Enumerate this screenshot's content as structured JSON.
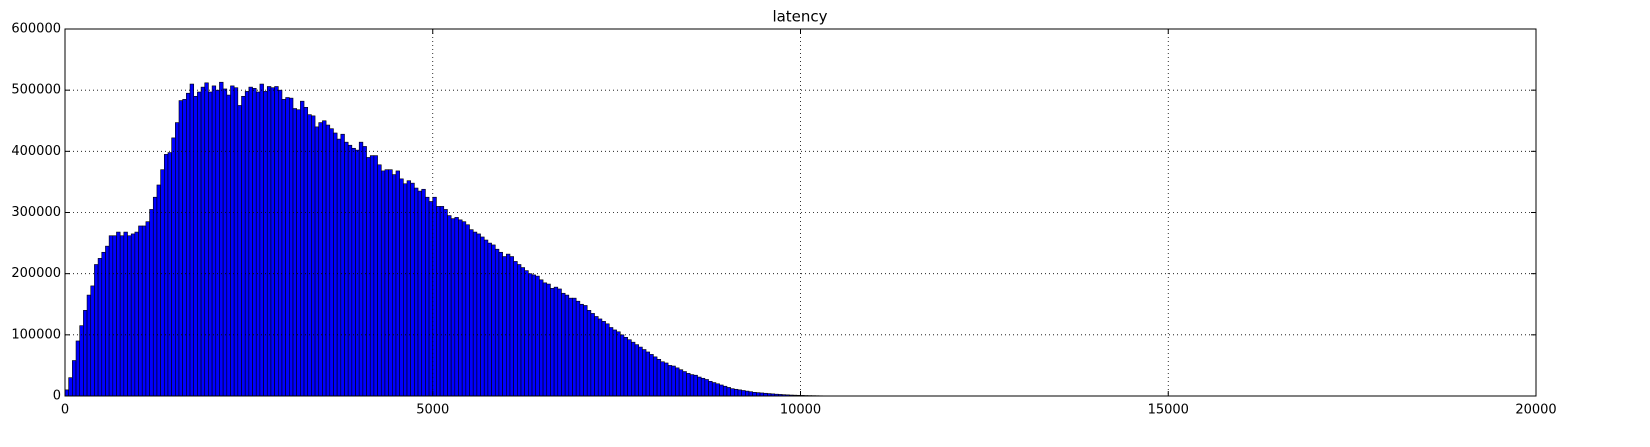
{
  "chart_data": {
    "type": "histogram",
    "title": "latency",
    "bins": [
      0,
      50,
      100,
      150,
      200,
      250,
      300,
      350,
      400,
      450,
      500,
      550,
      600,
      650,
      700,
      750,
      800,
      850,
      900,
      950,
      1000,
      1050,
      1100,
      1150,
      1200,
      1250,
      1300,
      1350,
      1400,
      1450,
      1500,
      1550,
      1600,
      1650,
      1700,
      1750,
      1800,
      1850,
      1900,
      1950,
      2000,
      2050,
      2100,
      2150,
      2200,
      2250,
      2300,
      2350,
      2400,
      2450,
      2500,
      2550,
      2600,
      2650,
      2700,
      2750,
      2800,
      2850,
      2900,
      2950,
      3000,
      3050,
      3100,
      3150,
      3200,
      3250,
      3300,
      3350,
      3400,
      3450,
      3500,
      3550,
      3600,
      3650,
      3700,
      3750,
      3800,
      3850,
      3900,
      3950,
      4000,
      4050,
      4100,
      4150,
      4200,
      4250,
      4300,
      4350,
      4400,
      4450,
      4500,
      4550,
      4600,
      4650,
      4700,
      4750,
      4800,
      4850,
      4900,
      4950,
      5000,
      5050,
      5100,
      5150,
      5200,
      5250,
      5300,
      5350,
      5400,
      5450,
      5500,
      5550,
      5600,
      5650,
      5700,
      5750,
      5800,
      5850,
      5900,
      5950,
      6000,
      6050,
      6100,
      6150,
      6200,
      6250,
      6300,
      6350,
      6400,
      6450,
      6500,
      6550,
      6600,
      6650,
      6700,
      6750,
      6800,
      6850,
      6900,
      6950,
      7000,
      7050,
      7100,
      7150,
      7200,
      7250,
      7300,
      7350,
      7400,
      7450,
      7500,
      7550,
      7600,
      7650,
      7700,
      7750,
      7800,
      7850,
      7900,
      7950,
      8000,
      8050,
      8100,
      8150,
      8200,
      8250,
      8300,
      8350,
      8400,
      8450,
      8500,
      8550,
      8600,
      8650,
      8700,
      8750,
      8800,
      8850,
      8900,
      8950,
      9000,
      9050,
      9100,
      9150,
      9200,
      9250,
      9300,
      9350,
      9400,
      9450,
      9500,
      9550,
      9600,
      9650,
      9700,
      9750,
      9800,
      9850,
      9900,
      9950,
      10000,
      10050,
      10100,
      10150,
      10200,
      10250,
      10300,
      10350,
      10400
    ],
    "values": [
      10000,
      30000,
      58000,
      90000,
      115000,
      140000,
      165000,
      180000,
      215000,
      225000,
      235000,
      245000,
      262000,
      262000,
      268000,
      262000,
      268000,
      262000,
      265000,
      268000,
      278000,
      278000,
      285000,
      305000,
      325000,
      345000,
      370000,
      395000,
      398000,
      422000,
      447000,
      483000,
      485000,
      495000,
      510000,
      490000,
      497000,
      505000,
      512000,
      497000,
      507000,
      500000,
      513000,
      502000,
      492000,
      507000,
      504000,
      475000,
      490000,
      498000,
      505000,
      503000,
      497000,
      510000,
      498000,
      506000,
      504000,
      506000,
      500000,
      485000,
      488000,
      487000,
      470000,
      468000,
      482000,
      472000,
      460000,
      458000,
      440000,
      447000,
      450000,
      443000,
      437000,
      430000,
      420000,
      428000,
      415000,
      410000,
      405000,
      402000,
      415000,
      408000,
      390000,
      393000,
      393000,
      378000,
      368000,
      370000,
      370000,
      362000,
      368000,
      355000,
      347000,
      352000,
      348000,
      340000,
      335000,
      338000,
      325000,
      318000,
      325000,
      310000,
      310000,
      305000,
      295000,
      290000,
      292000,
      288000,
      285000,
      280000,
      272000,
      268000,
      265000,
      260000,
      255000,
      250000,
      247000,
      240000,
      235000,
      228000,
      232000,
      228000,
      220000,
      215000,
      210000,
      205000,
      200000,
      198000,
      196000,
      190000,
      185000,
      183000,
      176000,
      178000,
      175000,
      168000,
      165000,
      160000,
      160000,
      155000,
      150000,
      148000,
      140000,
      135000,
      130000,
      126000,
      122000,
      118000,
      112000,
      108000,
      105000,
      100000,
      96000,
      92000,
      88000,
      84000,
      80000,
      76000,
      72000,
      68000,
      64000,
      60000,
      56000,
      54000,
      50000,
      49000,
      46000,
      43000,
      40000,
      37000,
      35000,
      34000,
      31000,
      29000,
      27000,
      24000,
      22000,
      20000,
      18000,
      16000,
      14000,
      12000,
      11000,
      10000,
      9000,
      8000,
      7000,
      6000,
      5500,
      5000,
      4500,
      4000,
      3500,
      3000,
      2600,
      2200,
      1900,
      1600,
      1400,
      1200,
      1000,
      800,
      700,
      600,
      500,
      400,
      300,
      200
    ],
    "color": "#0000ff",
    "xlim": [
      0,
      20000
    ],
    "xticks": [
      0,
      5000,
      10000,
      15000,
      20000
    ],
    "ylim": [
      0,
      600000
    ],
    "yticks": [
      0,
      100000,
      200000,
      300000,
      400000,
      500000,
      600000
    ],
    "grid": true
  }
}
